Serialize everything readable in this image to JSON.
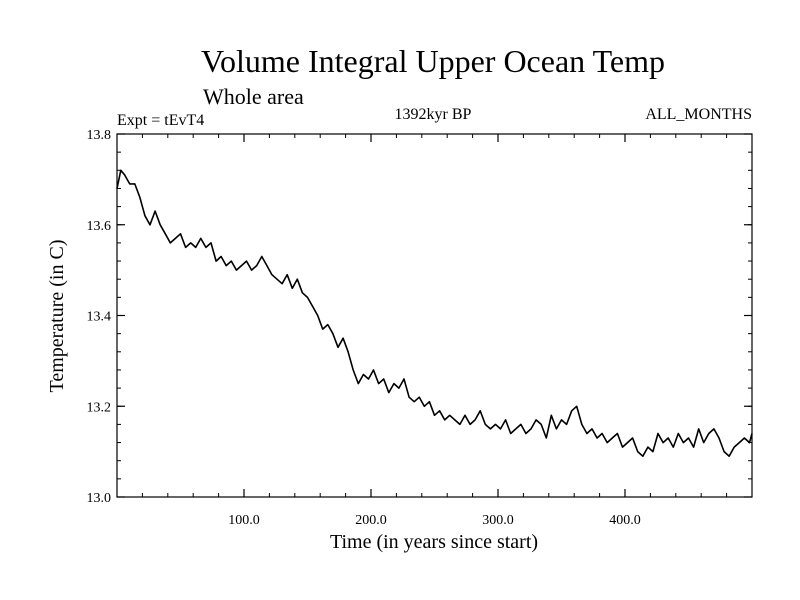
{
  "chart_data": {
    "type": "line",
    "title": "Volume Integral Upper Ocean Temp",
    "subtitle": "Whole area",
    "info_left": "Expt = tEvT4",
    "info_center": "1392kyr BP",
    "info_right": "ALL_MONTHS",
    "xlabel": "Time (in years since start)",
    "ylabel": "Temperature (in C)",
    "xlim": [
      0,
      500
    ],
    "ylim": [
      13.0,
      13.8
    ],
    "x_ticks": [
      100,
      200,
      300,
      400
    ],
    "x_tick_labels": [
      "100.0",
      "200.0",
      "300.0",
      "400.0"
    ],
    "y_ticks": [
      13.0,
      13.2,
      13.4,
      13.6,
      13.8
    ],
    "y_tick_labels": [
      "13.0",
      "13.2",
      "13.4",
      "13.6",
      "13.8"
    ],
    "x_minor_step": 20,
    "y_minor_step": 0.04,
    "line_color": "#000000",
    "series": [
      {
        "name": "Temperature",
        "x": [
          0,
          3,
          6,
          10,
          14,
          18,
          22,
          26,
          30,
          34,
          38,
          42,
          46,
          50,
          54,
          58,
          62,
          66,
          70,
          74,
          78,
          82,
          86,
          90,
          94,
          98,
          102,
          106,
          110,
          114,
          118,
          122,
          126,
          130,
          134,
          138,
          142,
          146,
          150,
          154,
          158,
          162,
          166,
          170,
          174,
          178,
          182,
          186,
          190,
          194,
          198,
          202,
          206,
          210,
          214,
          218,
          222,
          226,
          230,
          234,
          238,
          242,
          246,
          250,
          254,
          258,
          262,
          266,
          270,
          274,
          278,
          282,
          286,
          290,
          294,
          298,
          302,
          306,
          310,
          314,
          318,
          322,
          326,
          330,
          334,
          338,
          342,
          346,
          350,
          354,
          358,
          362,
          366,
          370,
          374,
          378,
          382,
          386,
          390,
          394,
          398,
          402,
          406,
          410,
          414,
          418,
          422,
          426,
          430,
          434,
          438,
          442,
          446,
          450,
          454,
          458,
          462,
          466,
          470,
          474,
          478,
          482,
          486,
          490,
          494,
          498,
          500
        ],
        "values": [
          13.68,
          13.72,
          13.71,
          13.69,
          13.69,
          13.66,
          13.62,
          13.6,
          13.63,
          13.6,
          13.58,
          13.56,
          13.57,
          13.58,
          13.55,
          13.56,
          13.55,
          13.57,
          13.55,
          13.56,
          13.52,
          13.53,
          13.51,
          13.52,
          13.5,
          13.51,
          13.52,
          13.5,
          13.51,
          13.53,
          13.51,
          13.49,
          13.48,
          13.47,
          13.49,
          13.46,
          13.48,
          13.45,
          13.44,
          13.42,
          13.4,
          13.37,
          13.38,
          13.36,
          13.33,
          13.35,
          13.32,
          13.28,
          13.25,
          13.27,
          13.26,
          13.28,
          13.25,
          13.26,
          13.23,
          13.25,
          13.24,
          13.26,
          13.22,
          13.21,
          13.22,
          13.2,
          13.21,
          13.18,
          13.19,
          13.17,
          13.18,
          13.17,
          13.16,
          13.18,
          13.16,
          13.17,
          13.19,
          13.16,
          13.15,
          13.16,
          13.15,
          13.17,
          13.14,
          13.15,
          13.16,
          13.14,
          13.15,
          13.17,
          13.16,
          13.13,
          13.18,
          13.15,
          13.17,
          13.16,
          13.19,
          13.2,
          13.16,
          13.14,
          13.15,
          13.13,
          13.14,
          13.12,
          13.13,
          13.14,
          13.11,
          13.12,
          13.13,
          13.1,
          13.09,
          13.11,
          13.1,
          13.14,
          13.12,
          13.13,
          13.11,
          13.14,
          13.12,
          13.13,
          13.11,
          13.15,
          13.12,
          13.14,
          13.15,
          13.13,
          13.1,
          13.09,
          13.11,
          13.12,
          13.13,
          13.12,
          13.14
        ]
      }
    ]
  }
}
